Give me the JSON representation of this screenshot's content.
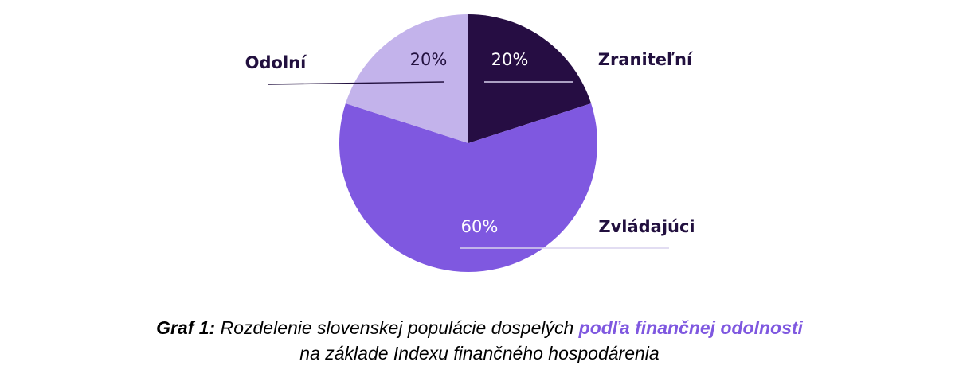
{
  "chart_data": {
    "type": "pie",
    "slices": [
      {
        "label": "Zraniteľní",
        "value": 20,
        "value_label": "20%",
        "color": "#260d43",
        "pct_color": "#ffffff"
      },
      {
        "label": "Zvládajúci",
        "value": 60,
        "value_label": "60%",
        "color": "#7f58e0",
        "pct_color": "#ffffff"
      },
      {
        "label": "Odolní",
        "value": 20,
        "value_label": "20%",
        "color": "#c3b3eb",
        "pct_color": "#22103f"
      }
    ],
    "start_angle_deg": 0,
    "direction": "clockwise",
    "legend": "none"
  },
  "caption": {
    "lead": "Graf 1:",
    "text": " Rozdelenie slovenskej populácie dospelých ",
    "highlight": "podľa finančnej odolnosti",
    "line2": "na základe Indexu finančného hospodárenia",
    "highlight_color": "#7f58e0"
  }
}
